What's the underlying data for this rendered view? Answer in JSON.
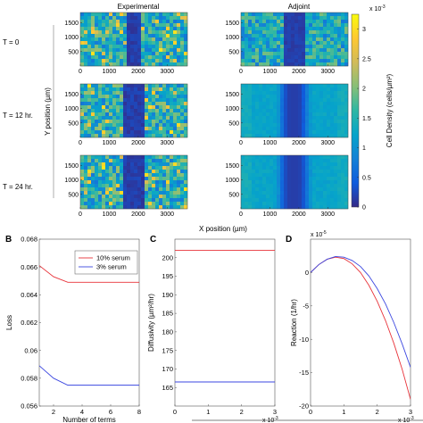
{
  "panel_a": {
    "column_titles": [
      "Experimental",
      "Adjoint"
    ],
    "row_labels": [
      "T = 0",
      "T = 12 hr.",
      "T = 24 hr."
    ],
    "xlabel": "X position (µm)",
    "ylabel": "Y position (µm)",
    "x_ticks": [
      "0",
      "1000",
      "2000",
      "3000"
    ],
    "y_ticks": [
      "500",
      "1000",
      "1500"
    ],
    "colorbar": {
      "label": "Cell Density (cells/µm²)",
      "exponent": "x 10",
      "exponent_power": "-3",
      "ticks": [
        "0",
        "0.5",
        "1",
        "1.5",
        "2",
        "2.5",
        "3"
      ],
      "colors": [
        "#352a87",
        "#0f5cdd",
        "#1481d6",
        "#06a4ca",
        "#2eb7a4",
        "#87bf77",
        "#d1bb59",
        "#fec832",
        "#f9fb0e"
      ]
    }
  },
  "chart_data": [
    {
      "panel": "B",
      "type": "line",
      "xlabel": "Number of terms",
      "ylabel": "Loss",
      "xlim": [
        1,
        8
      ],
      "ylim": [
        0.056,
        0.068
      ],
      "x_ticks": [
        "2",
        "4",
        "6",
        "8"
      ],
      "y_ticks": [
        "0.056",
        "0.058",
        "0.06",
        "0.062",
        "0.064",
        "0.066",
        "0.068"
      ],
      "legend_position": "top-right",
      "series": [
        {
          "name": "10% serum",
          "color": "#e8333a",
          "x": [
            1,
            2,
            3,
            4,
            5,
            6,
            7,
            8
          ],
          "y": [
            0.0661,
            0.0653,
            0.0649,
            0.0649,
            0.0649,
            0.0649,
            0.0649,
            0.0649
          ]
        },
        {
          "name": "3% serum",
          "color": "#3b47e0",
          "x": [
            1,
            2,
            3,
            4,
            5,
            6,
            7,
            8
          ],
          "y": [
            0.0589,
            0.058,
            0.0575,
            0.0575,
            0.0575,
            0.0575,
            0.0575,
            0.0575
          ]
        }
      ]
    },
    {
      "panel": "C",
      "type": "line",
      "xlabel": "",
      "ylabel": "Diffusivity (µm²/hr)",
      "x_exponent": "x 10",
      "x_exponent_power": "-3",
      "xlim": [
        0,
        3
      ],
      "ylim": [
        160,
        205
      ],
      "x_ticks": [
        "0",
        "1",
        "2",
        "3"
      ],
      "y_ticks": [
        "165",
        "170",
        "175",
        "180",
        "185",
        "190",
        "195",
        "200"
      ],
      "series": [
        {
          "color": "#e8333a",
          "x": [
            0,
            3
          ],
          "y": [
            202,
            202
          ]
        },
        {
          "color": "#3b47e0",
          "x": [
            0,
            3
          ],
          "y": [
            166.5,
            166.5
          ]
        }
      ]
    },
    {
      "panel": "D",
      "type": "line",
      "xlabel": "",
      "ylabel": "Reaction (1/hr)",
      "y_exponent": "x 10",
      "y_exponent_power": "-5",
      "x_exponent": "x 10",
      "x_exponent_power": "-3",
      "xlim": [
        0,
        3
      ],
      "ylim": [
        -20,
        5
      ],
      "x_ticks": [
        "0",
        "1",
        "2",
        "3"
      ],
      "y_ticks": [
        "-20",
        "-15",
        "-10",
        "-5",
        "0"
      ],
      "series": [
        {
          "color": "#e8333a",
          "x": [
            0,
            0.25,
            0.5,
            0.75,
            1.0,
            1.25,
            1.5,
            1.75,
            2.0,
            2.25,
            2.5,
            2.75,
            3.0
          ],
          "y": [
            0,
            1.2,
            2.0,
            2.3,
            2.1,
            1.3,
            0,
            -1.9,
            -4.3,
            -7.2,
            -10.6,
            -14.5,
            -19.0
          ]
        },
        {
          "color": "#3b47e0",
          "x": [
            0,
            0.25,
            0.5,
            0.75,
            1.0,
            1.25,
            1.5,
            1.75,
            2.0,
            2.25,
            2.5,
            2.75,
            3.0
          ],
          "y": [
            0,
            1.2,
            2.0,
            2.4,
            2.3,
            1.8,
            0.9,
            -0.5,
            -2.4,
            -4.7,
            -7.5,
            -10.7,
            -14.2
          ]
        }
      ]
    }
  ],
  "panel_labels": [
    "B",
    "C",
    "D"
  ]
}
